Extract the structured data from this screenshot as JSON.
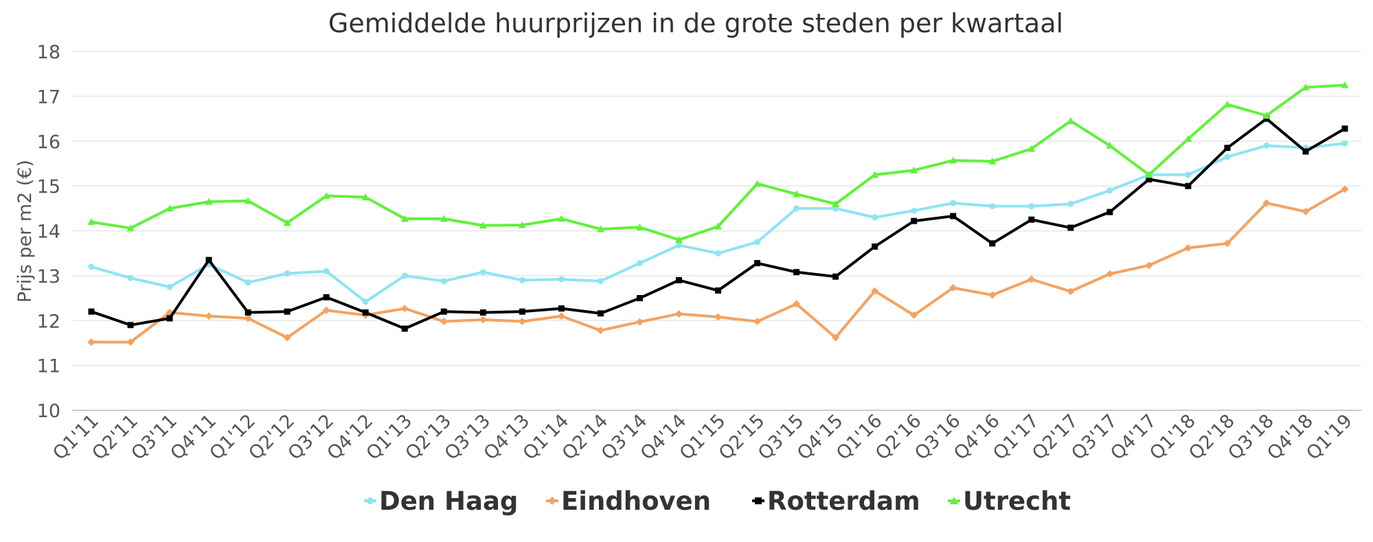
{
  "chart_data": {
    "type": "line",
    "title": "Gemiddelde huurprijzen in de grote steden per kwartaal",
    "xlabel": "",
    "ylabel": "Prijs per m2 (€)",
    "ylim": [
      10,
      18
    ],
    "yticks": [
      10,
      11,
      12,
      13,
      14,
      15,
      16,
      17,
      18
    ],
    "grid": true,
    "legend_position": "bottom-center",
    "categories": [
      "Q1'11",
      "Q2'11",
      "Q3'11",
      "Q4'11",
      "Q1'12",
      "Q2'12",
      "Q3'12",
      "Q4'12",
      "Q1'13",
      "Q2'13",
      "Q3'13",
      "Q4'13",
      "Q1'14",
      "Q2'14",
      "Q3'14",
      "Q4'14",
      "Q1'15",
      "Q2'15",
      "Q3'15",
      "Q4'15",
      "Q1'16",
      "Q2'16",
      "Q3'16",
      "Q4'16",
      "Q1'17",
      "Q2'17",
      "Q3'17",
      "Q4'17",
      "Q1'18",
      "Q2'18",
      "Q3'18",
      "Q4'18",
      "Q1'19"
    ],
    "series": [
      {
        "name": "Den Haag",
        "color": "#8ee4f4",
        "marker": "circle",
        "values": [
          13.2,
          12.95,
          12.75,
          13.25,
          12.85,
          13.05,
          13.1,
          12.42,
          13.0,
          12.88,
          13.08,
          12.9,
          12.92,
          12.88,
          13.28,
          13.68,
          13.5,
          13.75,
          14.5,
          14.5,
          14.3,
          14.45,
          14.62,
          14.55,
          14.55,
          14.6,
          14.9,
          15.25,
          15.25,
          15.65,
          15.9,
          15.85,
          15.95
        ]
      },
      {
        "name": "Eindhoven",
        "color": "#f4a261",
        "marker": "diamond",
        "values": [
          11.52,
          11.52,
          12.18,
          12.1,
          12.05,
          11.62,
          12.23,
          12.12,
          12.27,
          11.98,
          12.02,
          11.98,
          12.1,
          11.78,
          11.97,
          12.15,
          12.08,
          11.98,
          12.37,
          11.62,
          12.66,
          12.12,
          12.73,
          12.57,
          12.92,
          12.65,
          13.04,
          13.23,
          13.62,
          13.72,
          14.62,
          14.43,
          14.93
        ]
      },
      {
        "name": "Rotterdam",
        "color": "#000000",
        "marker": "square",
        "values": [
          12.2,
          11.9,
          12.05,
          13.35,
          12.18,
          12.2,
          12.52,
          12.18,
          11.82,
          12.2,
          12.18,
          12.2,
          12.27,
          12.16,
          12.5,
          12.9,
          12.67,
          13.28,
          13.08,
          12.98,
          13.65,
          14.22,
          14.33,
          13.72,
          14.25,
          14.07,
          14.42,
          15.15,
          15.0,
          15.85,
          16.5,
          15.77,
          16.28
        ]
      },
      {
        "name": "Utrecht",
        "color": "#5ff23a",
        "marker": "triangle",
        "values": [
          14.2,
          14.06,
          14.5,
          14.65,
          14.67,
          14.18,
          14.78,
          14.75,
          14.27,
          14.27,
          14.12,
          14.13,
          14.27,
          14.04,
          14.08,
          13.8,
          14.1,
          15.05,
          14.82,
          14.6,
          15.25,
          15.35,
          15.57,
          15.55,
          15.83,
          16.45,
          15.9,
          15.25,
          16.05,
          16.82,
          16.57,
          17.2,
          17.25
        ]
      }
    ]
  }
}
